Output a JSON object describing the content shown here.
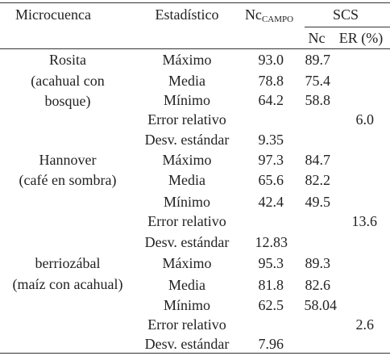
{
  "headers": {
    "microcuenca": "Microcuenca",
    "estadistico": "Estadístico",
    "nc_campo_main": "Nc",
    "nc_campo_sub": "CAMPO",
    "scs": "SCS",
    "nc": "Nc",
    "er": "ER (%)"
  },
  "groups": [
    {
      "name_lines": [
        "Rosita",
        "(acahual con",
        "bosque)"
      ],
      "rows": [
        {
          "stat": "Máximo",
          "nc_campo": "93.0",
          "nc": "89.7",
          "er": ""
        },
        {
          "stat": "Media",
          "nc_campo": "78.8",
          "nc": "75.4",
          "er": ""
        },
        {
          "stat": "Mínimo",
          "nc_campo": "64.2",
          "nc": "58.8",
          "er": ""
        },
        {
          "stat": "Error relativo",
          "nc_campo": "",
          "nc": "",
          "er": "6.0"
        },
        {
          "stat": "Desv. estándar",
          "nc_campo": "9.35",
          "nc": "",
          "er": ""
        }
      ]
    },
    {
      "name_lines": [
        "Hannover",
        "(café en sombra)"
      ],
      "rows": [
        {
          "stat": "Máximo",
          "nc_campo": "97.3",
          "nc": "84.7",
          "er": ""
        },
        {
          "stat": "Media",
          "nc_campo": "65.6",
          "nc": "82.2",
          "er": ""
        },
        {
          "stat": "Mínimo",
          "nc_campo": "42.4",
          "nc": "49.5",
          "er": ""
        },
        {
          "stat": "Error relativo",
          "nc_campo": "",
          "nc": "",
          "er": "13.6"
        },
        {
          "stat": "Desv. estándar",
          "nc_campo": "12.83",
          "nc": "",
          "er": ""
        }
      ]
    },
    {
      "name_lines": [
        "berriozábal",
        "(maíz con acahual)"
      ],
      "rows": [
        {
          "stat": "Máximo",
          "nc_campo": "95.3",
          "nc": "89.3",
          "er": ""
        },
        {
          "stat": "Media",
          "nc_campo": "81.8",
          "nc": "82.6",
          "er": ""
        },
        {
          "stat": "Mínimo",
          "nc_campo": "62.5",
          "nc": "58.04",
          "er": ""
        },
        {
          "stat": "Error relativo",
          "nc_campo": "",
          "nc": "",
          "er": "2.6"
        },
        {
          "stat": "Desv. estándar",
          "nc_campo": "7.96",
          "nc": "",
          "er": ""
        }
      ]
    }
  ]
}
